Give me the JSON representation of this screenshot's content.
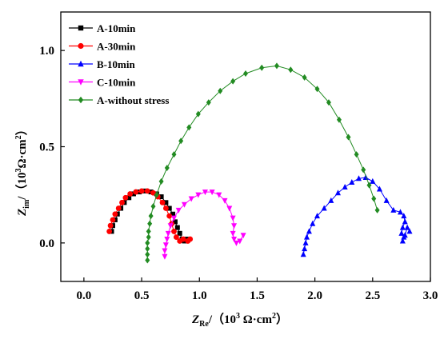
{
  "chart_data": {
    "type": "scatter",
    "xlabel": "Z",
    "xlabel_sub": "Re",
    "xlabel_unit_pre": "/（10",
    "xlabel_unit_sup": "3",
    "xlabel_unit_post": " Ω·cm",
    "xlabel_unit_sup2": "2",
    "xlabel_unit_close": "）",
    "ylabel": "Z",
    "ylabel_sub": "im",
    "ylabel_unit_pre": "/（10",
    "ylabel_unit_sup": "3",
    "ylabel_unit_post": "Ω·cm",
    "ylabel_unit_sup2": "2",
    "ylabel_unit_close": "）",
    "xlim": [
      -0.2,
      3.0
    ],
    "ylim": [
      -0.2,
      1.2
    ],
    "xticks": [
      0.0,
      0.5,
      1.0,
      1.5,
      2.0,
      2.5,
      3.0
    ],
    "xtick_labels": [
      "0.0",
      "0.5",
      "1.0",
      "1.5",
      "2.0",
      "2.5",
      "3.0"
    ],
    "yticks": [
      0.0,
      0.5,
      1.0
    ],
    "ytick_labels": [
      "0.0",
      "0.5",
      "1.0"
    ],
    "grid": false,
    "legend_position": "top-left",
    "series": [
      {
        "name": "A-10min",
        "color": "#000000",
        "marker": "square",
        "points": [
          [
            0.24,
            0.06
          ],
          [
            0.25,
            0.09
          ],
          [
            0.27,
            0.12
          ],
          [
            0.29,
            0.15
          ],
          [
            0.32,
            0.18
          ],
          [
            0.35,
            0.21
          ],
          [
            0.39,
            0.235
          ],
          [
            0.43,
            0.255
          ],
          [
            0.48,
            0.265
          ],
          [
            0.53,
            0.27
          ],
          [
            0.58,
            0.265
          ],
          [
            0.63,
            0.255
          ],
          [
            0.67,
            0.24
          ],
          [
            0.71,
            0.21
          ],
          [
            0.74,
            0.18
          ],
          [
            0.77,
            0.15
          ],
          [
            0.79,
            0.11
          ],
          [
            0.81,
            0.08
          ],
          [
            0.83,
            0.05
          ],
          [
            0.85,
            0.02
          ],
          [
            0.87,
            0.01
          ],
          [
            0.89,
            0.02
          ]
        ]
      },
      {
        "name": "A-30min",
        "color": "#ff0000",
        "marker": "circle",
        "points": [
          [
            0.22,
            0.06
          ],
          [
            0.23,
            0.09
          ],
          [
            0.25,
            0.12
          ],
          [
            0.27,
            0.15
          ],
          [
            0.3,
            0.18
          ],
          [
            0.33,
            0.21
          ],
          [
            0.36,
            0.235
          ],
          [
            0.4,
            0.255
          ],
          [
            0.45,
            0.265
          ],
          [
            0.5,
            0.27
          ],
          [
            0.55,
            0.27
          ],
          [
            0.6,
            0.26
          ],
          [
            0.64,
            0.24
          ],
          [
            0.68,
            0.21
          ],
          [
            0.71,
            0.18
          ],
          [
            0.74,
            0.14
          ],
          [
            0.76,
            0.1
          ],
          [
            0.78,
            0.06
          ],
          [
            0.8,
            0.03
          ],
          [
            0.83,
            0.01
          ],
          [
            0.86,
            0.02
          ],
          [
            0.9,
            0.01
          ],
          [
            0.92,
            0.02
          ]
        ]
      },
      {
        "name": "B-10min",
        "color": "#0000ff",
        "marker": "triangle-up",
        "points": [
          [
            1.9,
            -0.06
          ],
          [
            1.91,
            -0.03
          ],
          [
            1.92,
            0.0
          ],
          [
            1.93,
            0.03
          ],
          [
            1.95,
            0.06
          ],
          [
            1.98,
            0.1
          ],
          [
            2.02,
            0.14
          ],
          [
            2.08,
            0.18
          ],
          [
            2.14,
            0.22
          ],
          [
            2.2,
            0.26
          ],
          [
            2.26,
            0.29
          ],
          [
            2.32,
            0.315
          ],
          [
            2.38,
            0.335
          ],
          [
            2.44,
            0.34
          ],
          [
            2.5,
            0.32
          ],
          [
            2.56,
            0.28
          ],
          [
            2.62,
            0.22
          ],
          [
            2.68,
            0.17
          ],
          [
            2.74,
            0.16
          ],
          [
            2.77,
            0.14
          ],
          [
            2.78,
            0.11
          ],
          [
            2.76,
            0.08
          ],
          [
            2.75,
            0.05
          ],
          [
            2.77,
            0.03
          ],
          [
            2.76,
            0.01
          ],
          [
            2.78,
            0.04
          ],
          [
            2.8,
            0.08
          ],
          [
            2.82,
            0.06
          ]
        ]
      },
      {
        "name": "C-10min",
        "color": "#ff00ff",
        "marker": "triangle-down",
        "points": [
          [
            0.7,
            -0.07
          ],
          [
            0.7,
            -0.04
          ],
          [
            0.71,
            -0.01
          ],
          [
            0.72,
            0.02
          ],
          [
            0.73,
            0.05
          ],
          [
            0.75,
            0.09
          ],
          [
            0.78,
            0.13
          ],
          [
            0.82,
            0.17
          ],
          [
            0.87,
            0.2
          ],
          [
            0.93,
            0.23
          ],
          [
            0.99,
            0.25
          ],
          [
            1.05,
            0.265
          ],
          [
            1.11,
            0.265
          ],
          [
            1.17,
            0.25
          ],
          [
            1.22,
            0.22
          ],
          [
            1.26,
            0.18
          ],
          [
            1.29,
            0.13
          ],
          [
            1.3,
            0.09
          ],
          [
            1.29,
            0.05
          ],
          [
            1.3,
            0.02
          ],
          [
            1.32,
            0.0
          ],
          [
            1.35,
            0.01
          ],
          [
            1.38,
            0.04
          ]
        ]
      },
      {
        "name": "A-without stress",
        "color": "#228b22",
        "marker": "diamond",
        "points": [
          [
            0.55,
            -0.09
          ],
          [
            0.55,
            -0.06
          ],
          [
            0.55,
            -0.03
          ],
          [
            0.55,
            0.0
          ],
          [
            0.56,
            0.03
          ],
          [
            0.56,
            0.06
          ],
          [
            0.57,
            0.1
          ],
          [
            0.58,
            0.14
          ],
          [
            0.6,
            0.19
          ],
          [
            0.63,
            0.25
          ],
          [
            0.67,
            0.32
          ],
          [
            0.72,
            0.39
          ],
          [
            0.78,
            0.46
          ],
          [
            0.84,
            0.53
          ],
          [
            0.91,
            0.6
          ],
          [
            0.99,
            0.67
          ],
          [
            1.08,
            0.73
          ],
          [
            1.18,
            0.79
          ],
          [
            1.29,
            0.84
          ],
          [
            1.4,
            0.88
          ],
          [
            1.54,
            0.91
          ],
          [
            1.67,
            0.92
          ],
          [
            1.79,
            0.9
          ],
          [
            1.91,
            0.86
          ],
          [
            2.02,
            0.8
          ],
          [
            2.12,
            0.73
          ],
          [
            2.21,
            0.64
          ],
          [
            2.29,
            0.55
          ],
          [
            2.36,
            0.46
          ],
          [
            2.42,
            0.38
          ],
          [
            2.47,
            0.3
          ],
          [
            2.51,
            0.23
          ],
          [
            2.54,
            0.17
          ]
        ]
      }
    ]
  }
}
